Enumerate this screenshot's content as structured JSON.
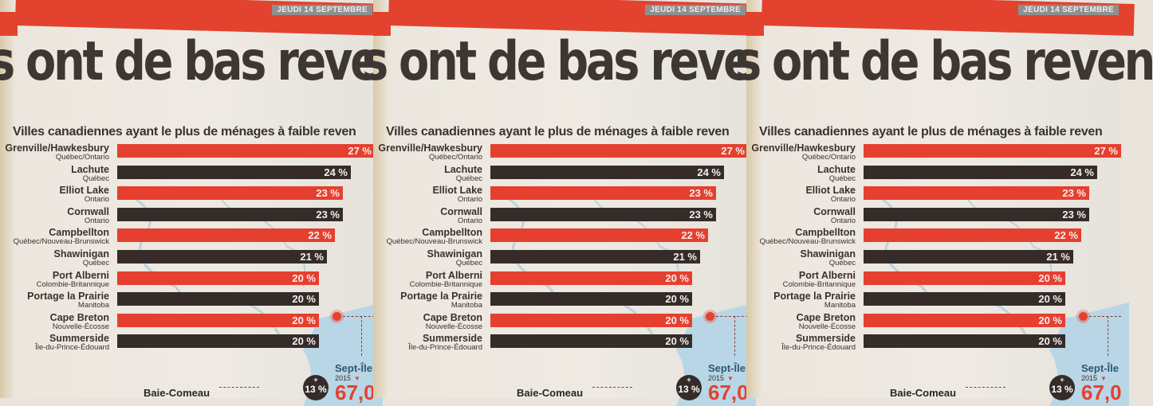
{
  "header": {
    "date": "JEUDI 14 SEPTEMBRE",
    "headline": "s ont de bas reven"
  },
  "colors": {
    "red": "#e5402f",
    "dark": "#352c2a"
  },
  "chart_data": {
    "type": "bar",
    "orientation": "horizontal",
    "title": "Villes canadiennes ayant le plus de ménages à faible reven",
    "categories": [
      "Grenville/Hawkesbury",
      "Lachute",
      "Elliot Lake",
      "Cornwall",
      "Campbellton",
      "Shawinigan",
      "Port Alberni",
      "Portage la Prairie",
      "Cape Breton",
      "Summerside"
    ],
    "provinces": [
      "Québec/Ontario",
      "Québec",
      "Ontario",
      "Ontario",
      "Québec/Nouveau-Brunswick",
      "Québec",
      "Colombie-Britannique",
      "Manitoba",
      "Nouvelle-Écosse",
      "Île-du-Prince-Édouard"
    ],
    "values": [
      27,
      24,
      23,
      23,
      22,
      21,
      20,
      20,
      20,
      20
    ],
    "labels": [
      "27 %",
      "24 %",
      "23 %",
      "23 %",
      "22 %",
      "21 %",
      "20 %",
      "20 %",
      "20 %",
      "20 %"
    ],
    "unit": "%"
  },
  "map": {
    "city1": "Sept-Île",
    "year": "2015",
    "badge_plus": "+",
    "badge_value": "13 %",
    "big_value": "67,0",
    "city2": "Baie-Comeau"
  }
}
